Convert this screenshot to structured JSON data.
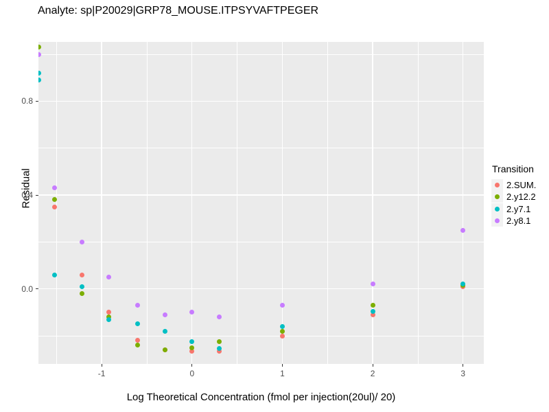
{
  "chart_data": {
    "type": "scatter",
    "title": "Analyte: sp|P20029|GRP78_MOUSE.ITPSYVAFTPEGER",
    "xlabel": "Log Theoretical Concentration (fmol per injection(20ul)/ 20)",
    "ylabel": "Residual",
    "xlim": [
      -1.7,
      3.23
    ],
    "ylim": [
      -0.32,
      1.053
    ],
    "grid": true,
    "legend_title": "Transition",
    "legend_position": "right",
    "x_ticks": [
      {
        "value": -1,
        "label": "-1"
      },
      {
        "value": 0,
        "label": "0"
      },
      {
        "value": 1,
        "label": "1"
      },
      {
        "value": 2,
        "label": "2"
      },
      {
        "value": 3,
        "label": "3"
      }
    ],
    "y_ticks": [
      {
        "value": 0.0,
        "label": "0.0"
      },
      {
        "value": 0.4,
        "label": "0.4"
      },
      {
        "value": 0.8,
        "label": "0.8"
      }
    ],
    "x_minor_gridlines": [
      -1.5,
      -0.5,
      0.5,
      1.5,
      2.5
    ],
    "y_minor_gridlines": [
      -0.2,
      0.2,
      0.6,
      1.0
    ],
    "series": [
      {
        "name": "2.SUM.",
        "color": "#F8766D",
        "points": [
          [
            -1.52,
            0.35
          ],
          [
            -1.22,
            0.06
          ],
          [
            -0.92,
            -0.1
          ],
          [
            -0.6,
            -0.22
          ],
          [
            -0.3,
            -0.26
          ],
          [
            0.0,
            -0.265
          ],
          [
            0.3,
            -0.265
          ],
          [
            1.0,
            -0.2
          ],
          [
            2.0,
            -0.11
          ],
          [
            3.0,
            0.01
          ]
        ]
      },
      {
        "name": "2.y12.2",
        "color": "#7CAE00",
        "points": [
          [
            -1.7,
            1.03
          ],
          [
            -1.52,
            0.38
          ],
          [
            -1.22,
            -0.02
          ],
          [
            -0.92,
            -0.12
          ],
          [
            -0.6,
            -0.24
          ],
          [
            -0.3,
            -0.26
          ],
          [
            0.0,
            -0.25
          ],
          [
            0.3,
            -0.225
          ],
          [
            1.0,
            -0.18
          ],
          [
            2.0,
            -0.07
          ],
          [
            3.0,
            0.015
          ]
        ]
      },
      {
        "name": "2.y7.1",
        "color": "#00BFC4",
        "points": [
          [
            -1.7,
            0.92
          ],
          [
            -1.7,
            0.89
          ],
          [
            -1.52,
            0.06
          ],
          [
            -1.22,
            0.01
          ],
          [
            -0.92,
            -0.13
          ],
          [
            -0.6,
            -0.15
          ],
          [
            -0.3,
            -0.18
          ],
          [
            0.0,
            -0.225
          ],
          [
            0.3,
            -0.255
          ],
          [
            1.0,
            -0.16
          ],
          [
            2.0,
            -0.095
          ],
          [
            3.0,
            0.02
          ]
        ]
      },
      {
        "name": "2.y8.1",
        "color": "#C77CFF",
        "points": [
          [
            -1.7,
            1.0
          ],
          [
            -1.52,
            0.43
          ],
          [
            -1.22,
            0.2
          ],
          [
            -0.92,
            0.05
          ],
          [
            -0.6,
            -0.07
          ],
          [
            -0.3,
            -0.11
          ],
          [
            0.0,
            -0.1
          ],
          [
            0.3,
            -0.12
          ],
          [
            1.0,
            -0.07
          ],
          [
            2.0,
            0.02
          ],
          [
            3.0,
            0.25
          ]
        ]
      }
    ],
    "colors": {
      "panel_background": "#EBEBEB",
      "gridline": "#FFFFFF",
      "legend_key_background": "#F2F2F2",
      "tick_text": "#4D4D4D",
      "text": "#000000"
    }
  }
}
